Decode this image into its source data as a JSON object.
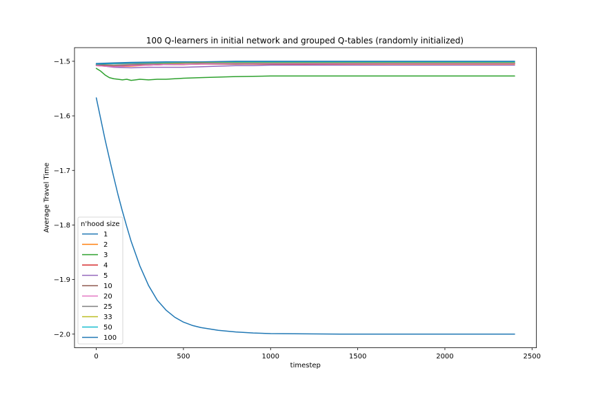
{
  "chart_data": {
    "type": "line",
    "title": "100 Q-learners in initial network and grouped Q-tables (randomly initialized)",
    "xlabel": "timestep",
    "ylabel": "Average Travel Time",
    "xlim": [
      -125,
      2525
    ],
    "ylim": [
      -2.025,
      -1.475
    ],
    "xticks": [
      0,
      500,
      1000,
      1500,
      2000,
      2500
    ],
    "xtick_labels": [
      "0",
      "500",
      "1000",
      "1500",
      "2000",
      "2500"
    ],
    "yticks": [
      -2.0,
      -1.9,
      -1.8,
      -1.7,
      -1.6,
      -1.5
    ],
    "ytick_labels": [
      "−2.0",
      "−1.9",
      "−1.8",
      "−1.7",
      "−1.6",
      "−1.5"
    ],
    "grid": false,
    "legend": {
      "title": "n'hood size",
      "placement": "lower-left"
    },
    "series": [
      {
        "name": "1",
        "color": "#1f77b4",
        "x": [
          0,
          25,
          50,
          75,
          100,
          125,
          150,
          175,
          200,
          250,
          300,
          350,
          400,
          450,
          500,
          550,
          600,
          700,
          800,
          900,
          1000,
          1200,
          1400,
          1600,
          2000,
          2400
        ],
        "y": [
          -1.567,
          -1.605,
          -1.643,
          -1.678,
          -1.712,
          -1.745,
          -1.775,
          -1.803,
          -1.83,
          -1.875,
          -1.911,
          -1.938,
          -1.956,
          -1.969,
          -1.978,
          -1.984,
          -1.988,
          -1.993,
          -1.996,
          -1.998,
          -1.999,
          -1.9995,
          -2.0,
          -2.0,
          -2.0,
          -2.0
        ]
      },
      {
        "name": "2",
        "color": "#ff7f0e",
        "x": [
          0,
          100,
          200,
          300,
          400,
          600,
          800,
          1200,
          1800,
          2400
        ],
        "y": [
          -1.508,
          -1.51,
          -1.509,
          -1.507,
          -1.506,
          -1.505,
          -1.505,
          -1.505,
          -1.505,
          -1.505
        ]
      },
      {
        "name": "3",
        "color": "#2ca02c",
        "x": [
          0,
          25,
          50,
          75,
          100,
          125,
          150,
          175,
          200,
          225,
          250,
          300,
          350,
          400,
          450,
          500,
          600,
          700,
          800,
          1000,
          1200,
          1600,
          2000,
          2400
        ],
        "y": [
          -1.513,
          -1.518,
          -1.525,
          -1.53,
          -1.532,
          -1.533,
          -1.534,
          -1.533,
          -1.535,
          -1.534,
          -1.533,
          -1.534,
          -1.533,
          -1.533,
          -1.532,
          -1.531,
          -1.53,
          -1.529,
          -1.528,
          -1.527,
          -1.527,
          -1.527,
          -1.527,
          -1.527
        ]
      },
      {
        "name": "4",
        "color": "#d62728",
        "x": [
          0,
          50,
          100,
          150,
          200,
          300,
          400,
          500,
          600,
          800,
          1200,
          1800,
          2400
        ],
        "y": [
          -1.506,
          -1.508,
          -1.509,
          -1.509,
          -1.508,
          -1.507,
          -1.506,
          -1.506,
          -1.505,
          -1.505,
          -1.505,
          -1.504,
          -1.504
        ]
      },
      {
        "name": "5",
        "color": "#9467bd",
        "x": [
          0,
          100,
          200,
          300,
          400,
          500,
          600,
          700,
          800,
          900,
          1000,
          1200,
          1800,
          2400
        ],
        "y": [
          -1.507,
          -1.511,
          -1.512,
          -1.511,
          -1.511,
          -1.511,
          -1.51,
          -1.509,
          -1.508,
          -1.508,
          -1.507,
          -1.507,
          -1.507,
          -1.507
        ]
      },
      {
        "name": "10",
        "color": "#8c564b",
        "x": [
          0,
          100,
          200,
          400,
          600,
          800,
          1200,
          1800,
          2400
        ],
        "y": [
          -1.507,
          -1.508,
          -1.507,
          -1.506,
          -1.505,
          -1.505,
          -1.504,
          -1.504,
          -1.504
        ]
      },
      {
        "name": "20",
        "color": "#e377c2",
        "x": [
          0,
          100,
          200,
          300,
          400,
          600,
          800,
          1200,
          1800,
          2400
        ],
        "y": [
          -1.508,
          -1.51,
          -1.508,
          -1.507,
          -1.506,
          -1.505,
          -1.504,
          -1.504,
          -1.504,
          -1.504
        ]
      },
      {
        "name": "25",
        "color": "#7f7f7f",
        "x": [
          0,
          100,
          200,
          400,
          600,
          800,
          1200,
          1800,
          2400
        ],
        "y": [
          -1.506,
          -1.505,
          -1.505,
          -1.504,
          -1.503,
          -1.503,
          -1.503,
          -1.503,
          -1.503
        ]
      },
      {
        "name": "33",
        "color": "#bcbd22",
        "x": [
          0,
          100,
          200,
          400,
          600,
          800,
          1200,
          1800,
          2400
        ],
        "y": [
          -1.505,
          -1.504,
          -1.503,
          -1.503,
          -1.502,
          -1.502,
          -1.502,
          -1.502,
          -1.502
        ]
      },
      {
        "name": "50",
        "color": "#17becf",
        "x": [
          0,
          100,
          200,
          400,
          600,
          800,
          1200,
          1800,
          2400
        ],
        "y": [
          -1.505,
          -1.504,
          -1.503,
          -1.502,
          -1.501,
          -1.501,
          -1.501,
          -1.501,
          -1.501
        ]
      },
      {
        "name": "100",
        "color": "#1f77b4",
        "x": [
          0,
          100,
          200,
          400,
          600,
          800,
          1200,
          1800,
          2400
        ],
        "y": [
          -1.504,
          -1.503,
          -1.502,
          -1.501,
          -1.501,
          -1.5,
          -1.5,
          -1.5,
          -1.5
        ]
      }
    ]
  }
}
